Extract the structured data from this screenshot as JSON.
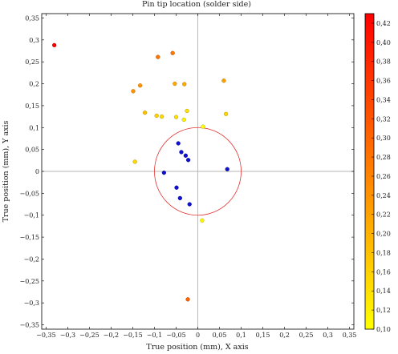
{
  "chart_data": {
    "type": "scatter",
    "title": "Pin tip location (solder side)",
    "xlabel": "True position (mm), X axis",
    "ylabel": "True position (mm), Y axis",
    "xlim": [
      -0.36,
      0.36
    ],
    "ylim": [
      -0.36,
      0.36
    ],
    "xticks": [
      -0.35,
      -0.3,
      -0.25,
      -0.2,
      -0.15,
      -0.1,
      -0.05,
      0,
      0.05,
      0.1,
      0.15,
      0.2,
      0.25,
      0.3,
      0.35
    ],
    "yticks": [
      -0.35,
      -0.3,
      -0.25,
      -0.2,
      -0.15,
      -0.1,
      -0.05,
      0,
      0.05,
      0.1,
      0.15,
      0.2,
      0.25,
      0.3,
      0.35
    ],
    "xtick_labels": [
      "−0,35",
      "−0,3",
      "−0,25",
      "−0,2",
      "−0,15",
      "−0,1",
      "−0,05",
      "0",
      "0,05",
      "0,1",
      "0,15",
      "0,2",
      "0,25",
      "0,3",
      "0,35"
    ],
    "ytick_labels": [
      "−0,35",
      "−0,3",
      "−0,25",
      "−0,2",
      "−0,15",
      "−0,1",
      "−0,05",
      "0",
      "0,05",
      "0,1",
      "0,15",
      "0,2",
      "0,25",
      "0,3",
      "0,35"
    ],
    "crosshair_lines": true,
    "tolerance_circle": {
      "center": [
        0,
        0
      ],
      "radius": 0.1,
      "color": "#e53030"
    },
    "colorbar": {
      "range": [
        0.1,
        0.43
      ],
      "ticks": [
        0.1,
        0.12,
        0.14,
        0.16,
        0.18,
        0.2,
        0.22,
        0.24,
        0.26,
        0.28,
        0.3,
        0.32,
        0.34,
        0.36,
        0.38,
        0.4,
        0.42
      ],
      "tick_labels": [
        "0,10",
        "0,12",
        "0,14",
        "0,16",
        "0,18",
        "0,20",
        "0,22",
        "0,24",
        "0,26",
        "0,28",
        "0,30",
        "0,32",
        "0,34",
        "0,36",
        "0,38",
        "0,40",
        "0,42"
      ],
      "colors": [
        "#ffff00",
        "#ff0000"
      ]
    },
    "in_tolerance_color": "#1010d0",
    "points": [
      {
        "x": -0.331,
        "y": 0.288,
        "v": 0.43
      },
      {
        "x": -0.092,
        "y": 0.261,
        "v": 0.28
      },
      {
        "x": -0.058,
        "y": 0.27,
        "v": 0.28
      },
      {
        "x": -0.053,
        "y": 0.2,
        "v": 0.21
      },
      {
        "x": -0.031,
        "y": 0.199,
        "v": 0.21
      },
      {
        "x": -0.133,
        "y": 0.196,
        "v": 0.24
      },
      {
        "x": -0.149,
        "y": 0.183,
        "v": 0.24
      },
      {
        "x": -0.122,
        "y": 0.134,
        "v": 0.18
      },
      {
        "x": -0.095,
        "y": 0.127,
        "v": 0.16
      },
      {
        "x": -0.083,
        "y": 0.125,
        "v": 0.15
      },
      {
        "x": -0.05,
        "y": 0.124,
        "v": 0.14
      },
      {
        "x": -0.032,
        "y": 0.118,
        "v": 0.12
      },
      {
        "x": -0.025,
        "y": 0.138,
        "v": 0.14
      },
      {
        "x": 0.06,
        "y": 0.207,
        "v": 0.22
      },
      {
        "x": 0.065,
        "y": 0.131,
        "v": 0.15
      },
      {
        "x": 0.012,
        "y": 0.102,
        "v": 0.1
      },
      {
        "x": -0.145,
        "y": 0.022,
        "v": 0.15
      },
      {
        "x": 0.01,
        "y": -0.112,
        "v": 0.11
      },
      {
        "x": -0.023,
        "y": -0.292,
        "v": 0.3
      },
      {
        "x": -0.045,
        "y": 0.064,
        "v": 0.08
      },
      {
        "x": -0.038,
        "y": 0.044,
        "v": 0.06
      },
      {
        "x": -0.028,
        "y": 0.036,
        "v": 0.05
      },
      {
        "x": -0.022,
        "y": 0.026,
        "v": 0.03
      },
      {
        "x": -0.078,
        "y": -0.003,
        "v": 0.08
      },
      {
        "x": 0.068,
        "y": 0.005,
        "v": 0.07
      },
      {
        "x": -0.049,
        "y": -0.037,
        "v": 0.06
      },
      {
        "x": -0.041,
        "y": -0.061,
        "v": 0.07
      },
      {
        "x": -0.019,
        "y": -0.075,
        "v": 0.08
      }
    ]
  }
}
